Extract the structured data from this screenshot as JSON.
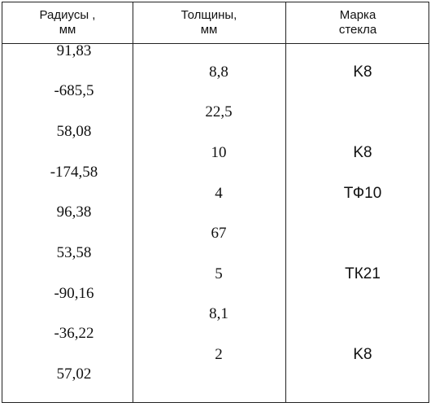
{
  "headers": [
    {
      "line1": "Радиусы ,",
      "line2": "мм"
    },
    {
      "line1": "Толщины,",
      "line2": "мм"
    },
    {
      "line1": "Марка",
      "line2": "стекла"
    }
  ],
  "radii": [
    "91,83",
    "-685,5",
    "58,08",
    "-174,58",
    "96,38",
    "53,58",
    "-90,16",
    "-36,22",
    "57,02"
  ],
  "thicknesses": [
    "8,8",
    "22,5",
    "10",
    "4",
    "67",
    "5",
    "8,1",
    "2"
  ],
  "glass_marks": [
    "K8",
    "",
    "K8",
    "ТФ10",
    "",
    "ТК21",
    "",
    "K8"
  ]
}
